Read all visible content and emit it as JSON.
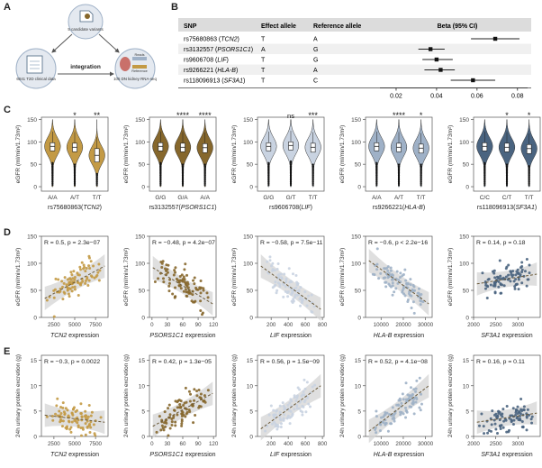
{
  "panel_labels": {
    "a": "A",
    "b": "B",
    "c": "C",
    "d": "D",
    "e": "E"
  },
  "panelA": {
    "top_node": "5 candidate variants",
    "left_node": "6041 T2D clinical data",
    "right_node": "105 DN kidney RNA-seq",
    "right_node_tags": [
      "Reads",
      "Reference"
    ],
    "center_label": "integration"
  },
  "panelB": {
    "headers": [
      "SNP",
      "Effect allele",
      "Reference allele",
      "Beta (95% CI)"
    ],
    "rows": [
      {
        "snp": "rs75680863",
        "gene": "TCN2",
        "effect": "T",
        "ref": "A"
      },
      {
        "snp": "rs3132557",
        "gene": "PSORS1C1",
        "effect": "A",
        "ref": "G"
      },
      {
        "snp": "rs9606708",
        "gene": "LIF",
        "effect": "T",
        "ref": "G"
      },
      {
        "snp": "rs9266221",
        "gene": "HLA-B",
        "effect": "T",
        "ref": "A"
      },
      {
        "snp": "rs118096913",
        "gene": "SF3A1",
        "effect": "T",
        "ref": "C"
      }
    ],
    "ticks": [
      "0.02",
      "0.04",
      "0.06",
      "0.08"
    ]
  },
  "chart_data": [
    {
      "type": "forest",
      "title": "Beta (95% CI)",
      "categories": [
        "rs75680863 (TCN2)",
        "rs3132557 (PSORS1C1)",
        "rs9606708 (LIF)",
        "rs9266221 (HLA-B)",
        "rs118096913 (SF3A1)"
      ],
      "beta": [
        0.069,
        0.037,
        0.04,
        0.042,
        0.058
      ],
      "ci_low": [
        0.057,
        0.031,
        0.033,
        0.034,
        0.047
      ],
      "ci_high": [
        0.081,
        0.044,
        0.048,
        0.049,
        0.069
      ],
      "xlim": [
        0.012,
        0.085
      ],
      "xticks": [
        0.02,
        0.04,
        0.06,
        0.08
      ]
    },
    {
      "type": "violin",
      "ylabel": "eGFR (ml/min/1.73m²)",
      "ylim": [
        -10,
        155
      ],
      "yticks": [
        0,
        50,
        100,
        150
      ],
      "panels": [
        {
          "xlabel": "rs75680863",
          "gene": "TCN2",
          "groups": [
            "A/A",
            "A/T",
            "T/T"
          ],
          "medians": [
            90,
            88,
            70
          ],
          "q1": [
            80,
            78,
            55
          ],
          "q3": [
            98,
            97,
            85
          ],
          "signif": [
            "",
            "*",
            "**"
          ],
          "colors": [
            "#c39a45",
            "#c39a45",
            "#c39a45"
          ]
        },
        {
          "xlabel": "rs3132557",
          "gene": "PSORS1C1",
          "groups": [
            "G/G",
            "G/A",
            "A/A"
          ],
          "medians": [
            90,
            88,
            87
          ],
          "q1": [
            80,
            78,
            76
          ],
          "q3": [
            98,
            97,
            96
          ],
          "signif": [
            "",
            "****",
            "****"
          ],
          "colors": [
            "#86672c",
            "#86672c",
            "#86672c"
          ]
        },
        {
          "xlabel": "rs9606708",
          "gene": "LIF",
          "groups": [
            "G/G",
            "G/T",
            "T/T"
          ],
          "medians": [
            90,
            92,
            88
          ],
          "q1": [
            80,
            82,
            77
          ],
          "q3": [
            98,
            100,
            97
          ],
          "signif": [
            "",
            "ns",
            "***"
          ],
          "colors": [
            "#c9d3e1",
            "#c9d3e1",
            "#c9d3e1"
          ]
        },
        {
          "xlabel": "rs9266221",
          "gene": "HLA-B",
          "groups": [
            "A/A",
            "A/T",
            "T/T"
          ],
          "medians": [
            90,
            88,
            86
          ],
          "q1": [
            80,
            78,
            75
          ],
          "q3": [
            98,
            97,
            95
          ],
          "signif": [
            "",
            "****",
            "*"
          ],
          "colors": [
            "#9fb1c7",
            "#9fb1c7",
            "#9fb1c7"
          ]
        },
        {
          "xlabel": "rs118096913",
          "gene": "SF3A1",
          "groups": [
            "C/C",
            "C/T",
            "T/T"
          ],
          "medians": [
            90,
            88,
            85
          ],
          "q1": [
            80,
            78,
            74
          ],
          "q3": [
            98,
            97,
            94
          ],
          "signif": [
            "",
            "*",
            "*"
          ],
          "colors": [
            "#4a6480",
            "#4a6480",
            "#4a6480"
          ]
        }
      ]
    },
    {
      "type": "scatter",
      "ylabel": "eGFR (ml/min/1.73m²)",
      "ylim": [
        0,
        150
      ],
      "yticks": [
        0,
        50,
        100,
        150
      ],
      "panels": [
        {
          "gene": "TCN2",
          "xlabel_suffix": " expression",
          "stat": "R = 0.5, p = 2.3e−07",
          "xlim": [
            1000,
            9000
          ],
          "xticks": [
            2500,
            5000,
            7500
          ],
          "trend": [
            35,
            95
          ],
          "color": "#c39a45",
          "seed": 11,
          "spread": 32
        },
        {
          "gene": "PSORS1C1",
          "xlabel_suffix": " expression",
          "stat": "R = −0.48, p = 4.2e−07",
          "xlim": [
            -5,
            125
          ],
          "xticks": [
            0,
            30,
            60,
            90,
            120
          ],
          "trend": [
            92,
            25
          ],
          "color": "#86672c",
          "seed": 23,
          "spread": 30
        },
        {
          "gene": "LIF",
          "xlabel_suffix": " expression",
          "stat": "R = −0.58, p = 7.5e−11",
          "xlim": [
            40,
            820
          ],
          "xticks": [
            200,
            400,
            600,
            800
          ],
          "trend": [
            95,
            15
          ],
          "color": "#c9d3e1",
          "seed": 37,
          "spread": 28
        },
        {
          "gene": "HLA-B",
          "xlabel_suffix": " expression",
          "stat": "R = −0.6, p < 2.2e−16",
          "xlim": [
            3000,
            33000
          ],
          "xticks": [
            10000,
            20000,
            30000
          ],
          "trend": [
            105,
            25
          ],
          "color": "#9fb1c7",
          "seed": 41,
          "spread": 26
        },
        {
          "gene": "SF3A1",
          "xlabel_suffix": " expression",
          "stat": "R = 0.14, p = 0.18",
          "xlim": [
            2000,
            3500
          ],
          "xticks": [
            2000,
            2500,
            3000
          ],
          "trend": [
            62,
            80
          ],
          "color": "#4a6480",
          "seed": 53,
          "spread": 30
        }
      ]
    },
    {
      "type": "scatter",
      "ylabel": "24h urinary protein excretion (g)",
      "ylim": [
        0,
        16
      ],
      "yticks": [
        0,
        5,
        10,
        15
      ],
      "panels": [
        {
          "gene": "TCN2",
          "xlabel_suffix": " expression",
          "stat": "R = −0.3, p = 0.0022",
          "xlim": [
            1000,
            9000
          ],
          "xticks": [
            2500,
            5000,
            7500
          ],
          "trend": [
            4.2,
            2.8
          ],
          "color": "#c39a45",
          "seed": 61,
          "spread": 3.2
        },
        {
          "gene": "PSORS1C1",
          "xlabel_suffix": " expression",
          "stat": "R = 0.42, p = 1.3e−05",
          "xlim": [
            -5,
            125
          ],
          "xticks": [
            0,
            30,
            60,
            90,
            120
          ],
          "trend": [
            2.0,
            8.5
          ],
          "color": "#86672c",
          "seed": 73,
          "spread": 3.0
        },
        {
          "gene": "LIF",
          "xlabel_suffix": " expression",
          "stat": "R = 0.56, p = 1.5e−09",
          "xlim": [
            40,
            820
          ],
          "xticks": [
            200,
            400,
            600,
            800
          ],
          "trend": [
            1.5,
            10.0
          ],
          "color": "#c9d3e1",
          "seed": 89,
          "spread": 3.0
        },
        {
          "gene": "HLA-B",
          "xlabel_suffix": " expression",
          "stat": "R = 0.52, p = 4.1e−08",
          "xlim": [
            3000,
            33000
          ],
          "xticks": [
            10000,
            20000,
            30000
          ],
          "trend": [
            1.0,
            10.0
          ],
          "color": "#9fb1c7",
          "seed": 97,
          "spread": 2.8
        },
        {
          "gene": "SF3A1",
          "xlabel_suffix": " expression",
          "stat": "R = 0.16, p = 0.11",
          "xlim": [
            2000,
            3500
          ],
          "xticks": [
            2000,
            2500,
            3000
          ],
          "trend": [
            2.8,
            4.6
          ],
          "color": "#4a6480",
          "seed": 101,
          "spread": 2.8
        }
      ]
    }
  ]
}
